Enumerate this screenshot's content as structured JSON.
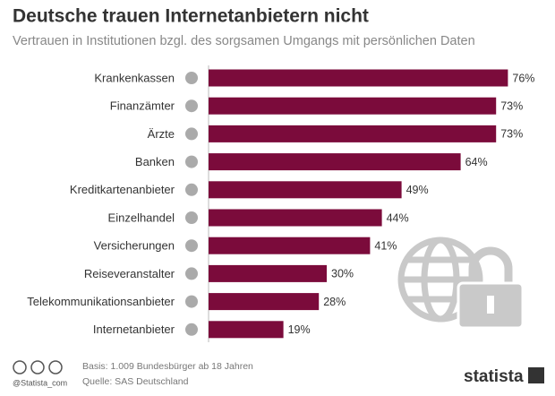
{
  "chart_data": {
    "type": "bar",
    "orientation": "horizontal",
    "title": "Deutsche trauen Internetanbietern nicht",
    "subtitle": "Vertrauen in Institutionen bzgl. des sorgsamen Umgangs mit persönlichen Daten",
    "categories": [
      "Krankenkassen",
      "Finanzämter",
      "Ärzte",
      "Banken",
      "Kreditkartenanbieter",
      "Einzelhandel",
      "Versicherungen",
      "Reiseveranstalter",
      "Telekommunikationsanbieter",
      "Internetanbieter"
    ],
    "values": [
      76,
      73,
      73,
      64,
      49,
      44,
      41,
      30,
      28,
      19
    ],
    "value_labels": [
      "76%",
      "73%",
      "73%",
      "64%",
      "49%",
      "44%",
      "41%",
      "30%",
      "28%",
      "19%"
    ],
    "color": "#7b0b3b"
  },
  "footer": {
    "handle": "@Statista_com",
    "basis": "Basis: 1.009 Bundesbürger ab 18 Jahren",
    "source": "Quelle: SAS Deutschland",
    "brand": "statista"
  }
}
